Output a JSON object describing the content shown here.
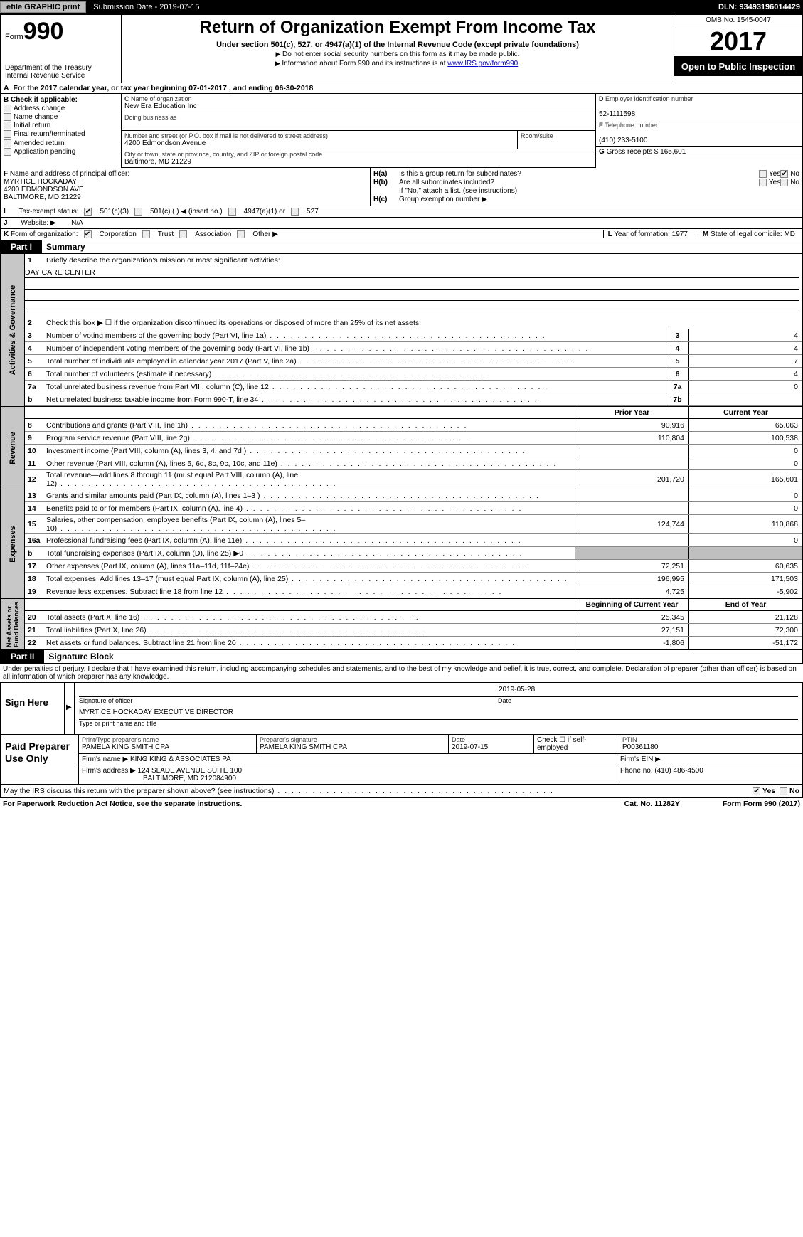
{
  "topbar": {
    "efile_btn": "efile GRAPHIC print",
    "sub_label": "Submission Date - 2019-07-15",
    "dln": "DLN: 93493196014429"
  },
  "hdr": {
    "form_word": "Form",
    "form_num": "990",
    "dept": "Department of the Treasury\nInternal Revenue Service",
    "title": "Return of Organization Exempt From Income Tax",
    "sub": "Under section 501(c), 527, or 4947(a)(1) of the Internal Revenue Code (except private foundations)",
    "note1": "Do not enter social security numbers on this form as it may be made public.",
    "note2_pre": "Information about Form 990 and its instructions is at ",
    "note2_link": "www.IRS.gov/form990",
    "omb": "OMB No. 1545-0047",
    "year": "2017",
    "open": "Open to Public Inspection"
  },
  "rowA": "For the 2017 calendar year, or tax year beginning 07-01-2017   , and ending 06-30-2018",
  "B": {
    "heading": "Check if applicable:",
    "opts": [
      "Address change",
      "Name change",
      "Initial return",
      "Final return/terminated",
      "Amended return",
      "Application pending"
    ]
  },
  "C": {
    "name_lbl": "Name of organization",
    "name": "New Era Education Inc",
    "dba_lbl": "Doing business as",
    "addr_lbl": "Number and street (or P.O. box if mail is not delivered to street address)",
    "addr": "4200 Edmondson Avenue",
    "room_lbl": "Room/suite",
    "city_lbl": "City or town, state or province, country, and ZIP or foreign postal code",
    "city": "Baltimore, MD  21229"
  },
  "D": {
    "lbl": "Employer identification number",
    "val": "52-1111598"
  },
  "E": {
    "lbl": "Telephone number",
    "val": "(410) 233-5100"
  },
  "G": {
    "lbl": "Gross receipts $",
    "val": "165,601"
  },
  "F": {
    "lbl": "Name and address of principal officer:",
    "name": "MYRTICE HOCKADAY",
    "addr1": "4200 EDMONDSON AVE",
    "addr2": "BALTIMORE, MD  21229"
  },
  "H": {
    "a": "Is this a group return for subordinates?",
    "b": "Are all subordinates included?",
    "bnote": "If \"No,\" attach a list. (see instructions)",
    "c": "Group exemption number ▶"
  },
  "I": {
    "lbl": "Tax-exempt status:",
    "opts": [
      "501(c)(3)",
      "501(c) (   ) ◀ (insert no.)",
      "4947(a)(1) or",
      "527"
    ]
  },
  "J": {
    "lbl": "Website: ▶",
    "val": "N/A"
  },
  "K": {
    "lbl": "Form of organization:",
    "opts": [
      "Corporation",
      "Trust",
      "Association",
      "Other ▶"
    ]
  },
  "L": {
    "lbl": "Year of formation:",
    "val": "1977"
  },
  "M": {
    "lbl": "State of legal domicile:",
    "val": "MD"
  },
  "partI": {
    "hdr": "Part I",
    "title": "Summary",
    "line1": "Briefly describe the organization's mission or most significant activities:",
    "mission": "DAY CARE CENTER",
    "line2": "Check this box ▶ ☐  if the organization discontinued its operations or disposed of more than 25% of its net assets.",
    "rows_ag": [
      {
        "n": "3",
        "t": "Number of voting members of the governing body (Part VI, line 1a)",
        "box": "3",
        "v": "4"
      },
      {
        "n": "4",
        "t": "Number of independent voting members of the governing body (Part VI, line 1b)",
        "box": "4",
        "v": "4"
      },
      {
        "n": "5",
        "t": "Total number of individuals employed in calendar year 2017 (Part V, line 2a)",
        "box": "5",
        "v": "7"
      },
      {
        "n": "6",
        "t": "Total number of volunteers (estimate if necessary)",
        "box": "6",
        "v": "4"
      },
      {
        "n": "7a",
        "t": "Total unrelated business revenue from Part VIII, column (C), line 12",
        "box": "7a",
        "v": "0"
      },
      {
        "n": "b",
        "t": "Net unrelated business taxable income from Form 990-T, line 34",
        "box": "7b",
        "v": ""
      }
    ],
    "col_prior": "Prior Year",
    "col_current": "Current Year",
    "rev": [
      {
        "n": "8",
        "t": "Contributions and grants (Part VIII, line 1h)",
        "p": "90,916",
        "c": "65,063"
      },
      {
        "n": "9",
        "t": "Program service revenue (Part VIII, line 2g)",
        "p": "110,804",
        "c": "100,538"
      },
      {
        "n": "10",
        "t": "Investment income (Part VIII, column (A), lines 3, 4, and 7d )",
        "p": "",
        "c": "0"
      },
      {
        "n": "11",
        "t": "Other revenue (Part VIII, column (A), lines 5, 6d, 8c, 9c, 10c, and 11e)",
        "p": "",
        "c": "0"
      },
      {
        "n": "12",
        "t": "Total revenue—add lines 8 through 11 (must equal Part VIII, column (A), line 12)",
        "p": "201,720",
        "c": "165,601"
      }
    ],
    "exp": [
      {
        "n": "13",
        "t": "Grants and similar amounts paid (Part IX, column (A), lines 1–3 )",
        "p": "",
        "c": "0"
      },
      {
        "n": "14",
        "t": "Benefits paid to or for members (Part IX, column (A), line 4)",
        "p": "",
        "c": "0"
      },
      {
        "n": "15",
        "t": "Salaries, other compensation, employee benefits (Part IX, column (A), lines 5–10)",
        "p": "124,744",
        "c": "110,868"
      },
      {
        "n": "16a",
        "t": "Professional fundraising fees (Part IX, column (A), line 11e)",
        "p": "",
        "c": "0"
      },
      {
        "n": "b",
        "t": "Total fundraising expenses (Part IX, column (D), line 25) ▶0",
        "p": "GRAY",
        "c": "GRAY"
      },
      {
        "n": "17",
        "t": "Other expenses (Part IX, column (A), lines 11a–11d, 11f–24e)",
        "p": "72,251",
        "c": "60,635"
      },
      {
        "n": "18",
        "t": "Total expenses. Add lines 13–17 (must equal Part IX, column (A), line 25)",
        "p": "196,995",
        "c": "171,503"
      },
      {
        "n": "19",
        "t": "Revenue less expenses. Subtract line 18 from line 12",
        "p": "4,725",
        "c": "-5,902"
      }
    ],
    "col_beg": "Beginning of Current Year",
    "col_end": "End of Year",
    "na": [
      {
        "n": "20",
        "t": "Total assets (Part X, line 16)",
        "p": "25,345",
        "c": "21,128"
      },
      {
        "n": "21",
        "t": "Total liabilities (Part X, line 26)",
        "p": "27,151",
        "c": "72,300"
      },
      {
        "n": "22",
        "t": "Net assets or fund balances. Subtract line 21 from line 20",
        "p": "-1,806",
        "c": "-51,172"
      }
    ]
  },
  "partII": {
    "hdr": "Part II",
    "title": "Signature Block"
  },
  "jurat": "Under penalties of perjury, I declare that I have examined this return, including accompanying schedules and statements, and to the best of my knowledge and belief, it is true, correct, and complete. Declaration of preparer (other than officer) is based on all information of which preparer has any knowledge.",
  "sign": {
    "here": "Sign Here",
    "sig_lbl": "Signature of officer",
    "date": "2019-05-28",
    "date_lbl": "Date",
    "name": "MYRTICE HOCKADAY  EXECUTIVE DIRECTOR",
    "name_lbl": "Type or print name and title"
  },
  "prep": {
    "lbl": "Paid Preparer Use Only",
    "c1": "Print/Type preparer's name",
    "v1": "PAMELA KING SMITH CPA",
    "c2": "Preparer's signature",
    "v2": "PAMELA KING SMITH CPA",
    "c3": "Date",
    "v3": "2019-07-15",
    "c4_lbl": "Check ☐ if self-employed",
    "c5": "PTIN",
    "v5": "P00361180",
    "firm_lbl": "Firm's name  ▶",
    "firm": "KING KING & ASSOCIATES PA",
    "ein_lbl": "Firm's EIN ▶",
    "addr_lbl": "Firm's address ▶",
    "addr": "124 SLADE AVENUE SUITE 100",
    "addr2": "BALTIMORE, MD  212084900",
    "phone_lbl": "Phone no.",
    "phone": "(410) 486-4500"
  },
  "discuss": "May the IRS discuss this return with the preparer shown above? (see instructions)",
  "footer": {
    "pra": "For Paperwork Reduction Act Notice, see the separate instructions.",
    "cat": "Cat. No. 11282Y",
    "form": "Form 990 (2017)"
  }
}
